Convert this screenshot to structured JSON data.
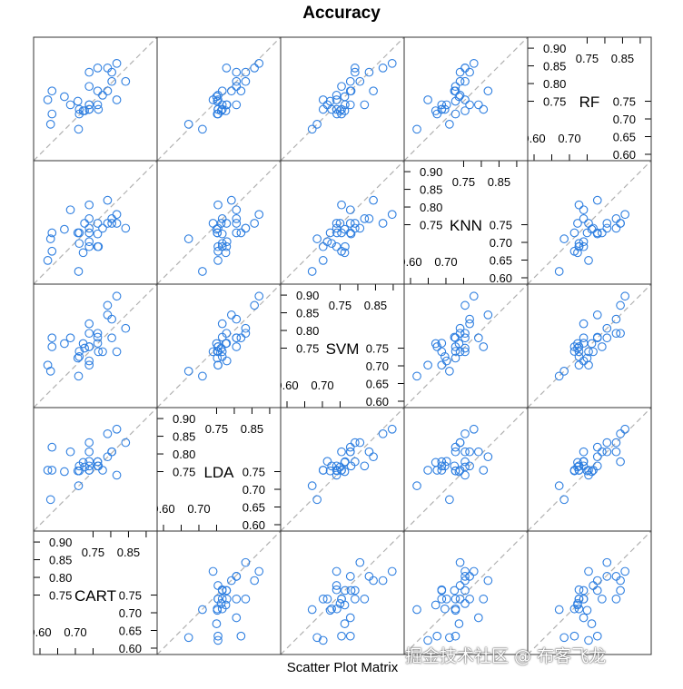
{
  "chart_data": {
    "type": "scatter-matrix",
    "title": "Accuracy",
    "xlabel": "Scatter Plot Matrix",
    "variables": [
      "CART",
      "LDA",
      "SVM",
      "KNN",
      "RF"
    ],
    "range": [
      0.582,
      0.931
    ],
    "tick_values": [
      0.6,
      0.65,
      0.7,
      0.75,
      0.8,
      0.85,
      0.9
    ],
    "tick_labels": {
      "upper_left": [
        "0.75",
        "0.80",
        "0.85",
        "0.90"
      ],
      "top": [
        "0.75",
        "0.85"
      ],
      "bottom": [
        "0.60",
        "0.70"
      ],
      "lower_right": [
        "0.60",
        "0.65",
        "0.70",
        "0.75"
      ]
    },
    "reference_line": "y = x (dashed)",
    "point_color": "#2f7fe0",
    "line_color": "#b0b0b0",
    "grid": false,
    "rows": [
      {
        "CART": 0.842,
        "LDA": 0.832,
        "SVM": 0.806,
        "KNN": 0.74,
        "RF": 0.806
      },
      {
        "CART": 0.817,
        "LDA": 0.74,
        "SVM": 0.74,
        "KNN": 0.754,
        "RF": 0.754
      },
      {
        "CART": 0.817,
        "LDA": 0.87,
        "SVM": 0.897,
        "KNN": 0.779,
        "RF": 0.857
      },
      {
        "CART": 0.803,
        "LDA": 0.806,
        "SVM": 0.779,
        "KNN": 0.754,
        "RF": 0.806
      },
      {
        "CART": 0.803,
        "LDA": 0.806,
        "SVM": 0.832,
        "KNN": 0.767,
        "RF": 0.832
      },
      {
        "CART": 0.791,
        "LDA": 0.792,
        "SVM": 0.844,
        "KNN": 0.819,
        "RF": 0.779
      },
      {
        "CART": 0.791,
        "LDA": 0.857,
        "SVM": 0.871,
        "KNN": 0.754,
        "RF": 0.844
      },
      {
        "CART": 0.777,
        "LDA": 0.754,
        "SVM": 0.74,
        "KNN": 0.74,
        "RF": 0.767
      },
      {
        "CART": 0.765,
        "LDA": 0.766,
        "SVM": 0.74,
        "KNN": 0.688,
        "RF": 0.727
      },
      {
        "CART": 0.763,
        "LDA": 0.778,
        "SVM": 0.764,
        "KNN": 0.688,
        "RF": 0.74
      },
      {
        "CART": 0.763,
        "LDA": 0.766,
        "SVM": 0.781,
        "KNN": 0.724,
        "RF": 0.779
      },
      {
        "CART": 0.763,
        "LDA": 0.778,
        "SVM": 0.792,
        "KNN": 0.754,
        "RF": 0.844
      },
      {
        "CART": 0.739,
        "LDA": 0.754,
        "SVM": 0.702,
        "KNN": 0.688,
        "RF": 0.727
      },
      {
        "CART": 0.739,
        "LDA": 0.779,
        "SVM": 0.714,
        "KNN": 0.702,
        "RF": 0.74
      },
      {
        "CART": 0.739,
        "LDA": 0.806,
        "SVM": 0.754,
        "KNN": 0.727,
        "RF": 0.792
      },
      {
        "CART": 0.739,
        "LDA": 0.832,
        "SVM": 0.792,
        "KNN": 0.74,
        "RF": 0.832
      },
      {
        "CART": 0.739,
        "LDA": 0.766,
        "SVM": 0.819,
        "KNN": 0.767,
        "RF": 0.74
      },
      {
        "CART": 0.739,
        "LDA": 0.754,
        "SVM": 0.754,
        "KNN": 0.806,
        "RF": 0.727
      },
      {
        "CART": 0.726,
        "LDA": 0.763,
        "SVM": 0.75,
        "KNN": 0.754,
        "RF": 0.723
      },
      {
        "CART": 0.722,
        "LDA": 0.776,
        "SVM": 0.763,
        "KNN": 0.671,
        "RF": 0.723
      },
      {
        "CART": 0.711,
        "LDA": 0.752,
        "SVM": 0.741,
        "KNN": 0.727,
        "RF": 0.714
      },
      {
        "CART": 0.711,
        "LDA": 0.766,
        "SVM": 0.726,
        "KNN": 0.697,
        "RF": 0.727
      },
      {
        "CART": 0.709,
        "LDA": 0.71,
        "SVM": 0.671,
        "KNN": 0.618,
        "RF": 0.671
      },
      {
        "CART": 0.707,
        "LDA": 0.752,
        "SVM": 0.722,
        "KNN": 0.727,
        "RF": 0.75
      },
      {
        "CART": 0.686,
        "LDA": 0.806,
        "SVM": 0.779,
        "KNN": 0.792,
        "RF": 0.74
      },
      {
        "CART": 0.669,
        "LDA": 0.75,
        "SVM": 0.763,
        "KNN": 0.737,
        "RF": 0.763
      },
      {
        "CART": 0.634,
        "LDA": 0.754,
        "SVM": 0.754,
        "KNN": 0.675,
        "RF": 0.714
      },
      {
        "CART": 0.634,
        "LDA": 0.819,
        "SVM": 0.779,
        "KNN": 0.727,
        "RF": 0.779
      },
      {
        "CART": 0.63,
        "LDA": 0.671,
        "SVM": 0.685,
        "KNN": 0.71,
        "RF": 0.685
      },
      {
        "CART": 0.622,
        "LDA": 0.754,
        "SVM": 0.702,
        "KNN": 0.649,
        "RF": 0.754
      }
    ]
  },
  "watermark": "掘金技术社区 @ 布客飞龙"
}
